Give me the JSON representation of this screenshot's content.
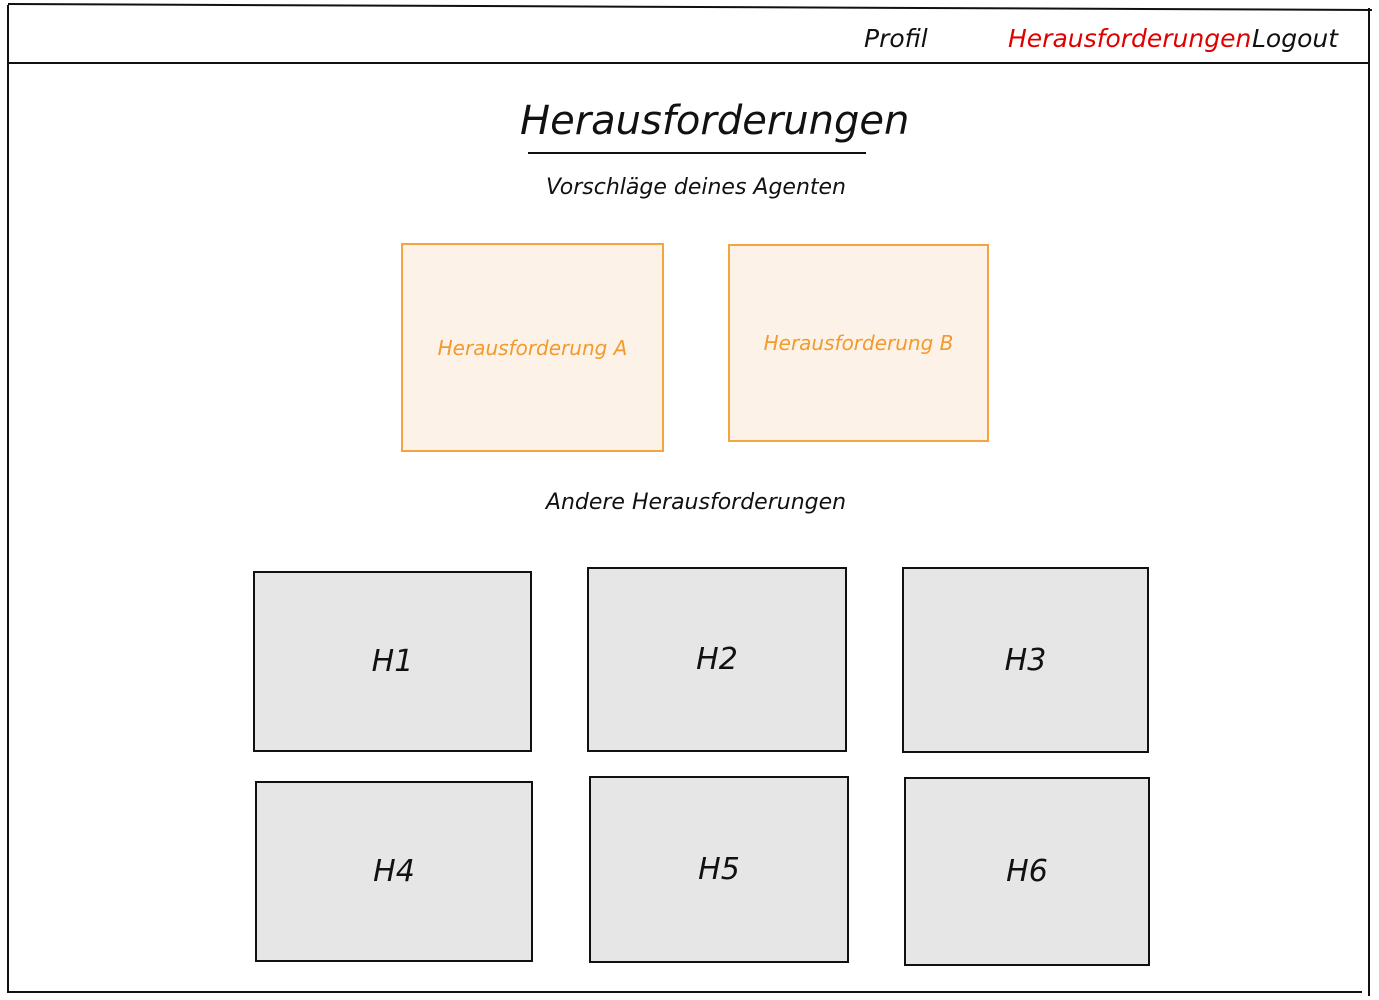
{
  "nav": {
    "items": [
      {
        "label": "Profil",
        "active": false
      },
      {
        "label": "Herausforderungen",
        "active": true
      },
      {
        "label": "Logout",
        "active": false
      }
    ]
  },
  "page": {
    "title": "Herausforderungen",
    "suggestions_label": "Vorschläge deines Agenten",
    "others_label": "Andere Herausforderungen"
  },
  "suggestions": [
    {
      "label": "Herausforderung A"
    },
    {
      "label": "Herausforderung B"
    }
  ],
  "others": [
    {
      "label": "H1"
    },
    {
      "label": "H2"
    },
    {
      "label": "H3"
    },
    {
      "label": "H4"
    },
    {
      "label": "H5"
    },
    {
      "label": "H6"
    }
  ],
  "colors": {
    "active_nav": "#e00000",
    "suggestion_border": "#f5a540",
    "suggestion_fill": "#fdf2e7",
    "suggestion_text": "#f39a2c",
    "other_fill": "#e6e6e6",
    "line": "#111111"
  }
}
